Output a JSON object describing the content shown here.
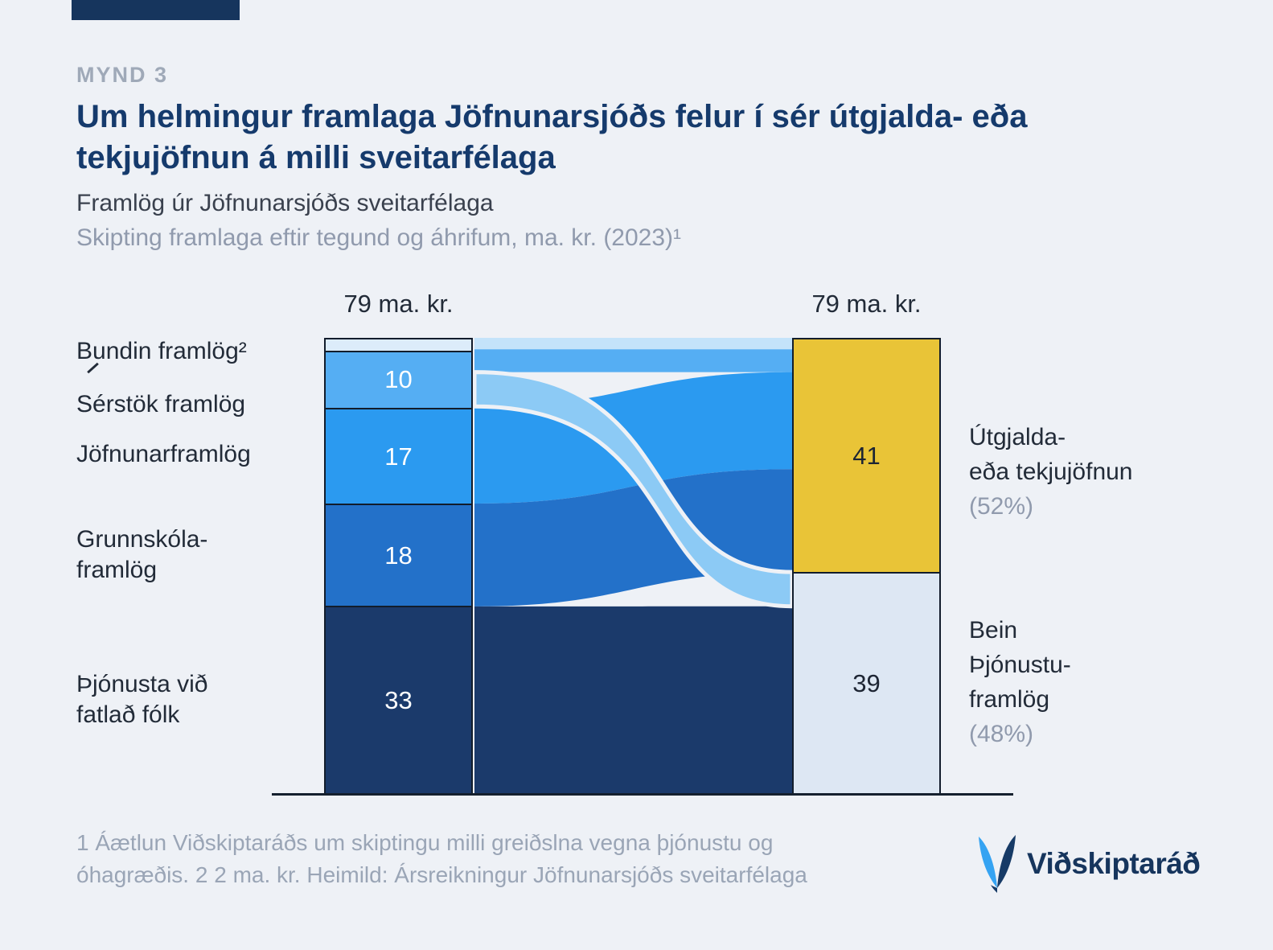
{
  "header": {
    "kicker": "MYND 3",
    "title_line1": "Um helmingur framlaga Jöfnunarsjóðs felur í sér útgjalda- eða",
    "title_line2": "tekjujöfnun á milli sveitarfélaga",
    "subtitle": "Framlög úr Jöfnunarsjóðs sveitarfélaga",
    "subtitle2": "Skipting framlaga eftir tegund og áhrifum, ma. kr. (2023)¹"
  },
  "chart_data": {
    "type": "bar",
    "variant": "stacked-bars-with-flows",
    "title": "Framlög úr Jöfnunarsjóðs sveitarfélaga",
    "subtitle": "Skipting framlaga eftir tegund og áhrifum, ma. kr. (2023)",
    "unit": "ma. kr.",
    "left_bar": {
      "total_label": "79 ma. kr.",
      "segments": [
        {
          "key": "bundin-framlog",
          "name": "Bundin framlög",
          "value": 2,
          "color": "#dcecfa",
          "show_value": false,
          "value_color": "#1d2533"
        },
        {
          "key": "serstok-framlog",
          "name": "Sérstök framlög",
          "value": 10,
          "color": "#55aef3",
          "show_value": true,
          "value_color": "#ffffff"
        },
        {
          "key": "jofnunarframlog",
          "name": "Jöfnunarframlög",
          "value": 17,
          "color": "#2b9af0",
          "show_value": true,
          "value_color": "#ffffff"
        },
        {
          "key": "grunnskolaframlog",
          "name": "Grunnskólaframlög",
          "value": 18,
          "color": "#2371c9",
          "show_value": true,
          "value_color": "#ffffff"
        },
        {
          "key": "thjonusta-vid-fatlad-folk",
          "name": "Þjónusta við fatlað fólk",
          "value": 33,
          "color": "#1b3a6b",
          "show_value": true,
          "value_color": "#ffffff"
        }
      ]
    },
    "right_bar": {
      "total_label": "79 ma. kr.",
      "segments": [
        {
          "key": "utgjalda-eda-tekjujofnun",
          "name": "Útgjalda- eða tekjujöfnun",
          "value": 41,
          "color": "#e9c437",
          "show_value": true,
          "value_color": "#1d2533"
        },
        {
          "key": "bein-thjonustuframlog",
          "name": "Bein þjónustuframlög",
          "value": 39,
          "color": "#dde7f3",
          "show_value": true,
          "value_color": "#1d2533"
        }
      ]
    },
    "flows": [
      {
        "from": "Bundin framlög",
        "to": "Útgjalda- eða tekjujöfnun",
        "value": 2,
        "color": "#c4e3fa"
      },
      {
        "from": "Sérstök framlög",
        "to": "Útgjalda- eða tekjujöfnun",
        "value": 4,
        "color": "#55aef3"
      },
      {
        "from": "Jöfnunarframlög",
        "to": "Útgjalda- eða tekjujöfnun",
        "value": 17,
        "color": "#2b9af0"
      },
      {
        "from": "Grunnskólaframlög",
        "to": "Útgjalda- eða tekjujöfnun",
        "value": 18,
        "color": "#2371c9"
      },
      {
        "from": "Þjónusta við fatlað fólk",
        "to": "Bein þjónustuframlög",
        "value": 33,
        "color": "#1b3a6b"
      },
      {
        "from": "Sérstök framlög",
        "to": "Bein þjónustuframlög",
        "value": 6,
        "color": "#8ccaf5"
      }
    ],
    "left_category_labels": [
      "Bundin framlög²",
      "Sérstök framlög",
      "Jöfnunarframlög",
      "Grunnskóla-framlög",
      "Þjónusta við fatlað fólk"
    ],
    "right_category_labels": [
      "Útgjalda- eða tekjujöfnun (52%)",
      "Bein Þjónustu-framlög (48%)"
    ]
  },
  "left_labels": {
    "bundin": "Bundin framlög²",
    "serstok": "Sérstök framlög",
    "jofnunar": "Jöfnunarframlög",
    "grunnskola_line1": "Grunnskóla-",
    "grunnskola_line2": "framlög",
    "thjonusta_line1": "Þjónusta við",
    "thjonusta_line2": "fatlað fólk"
  },
  "right_labels": {
    "utgjalda_line1": "Útgjalda-",
    "utgjalda_line2": "eða tekjujöfnun",
    "utgjalda_pct": "(52%)",
    "bein_line1": "Bein",
    "bein_line2": "Þjónustu-",
    "bein_line3": "framlög",
    "bein_pct": "(48%)"
  },
  "footnote": {
    "line1": "1 Áætlun Viðskiptaráðs um skiptingu milli greiðslna vegna þjónustu og",
    "line2": "óhagræðis. 2 2 ma. kr. Heimild: Ársreikningur Jöfnunarsjóðs sveitarfélaga"
  },
  "logo": {
    "text": "Viðskiptaráð"
  }
}
